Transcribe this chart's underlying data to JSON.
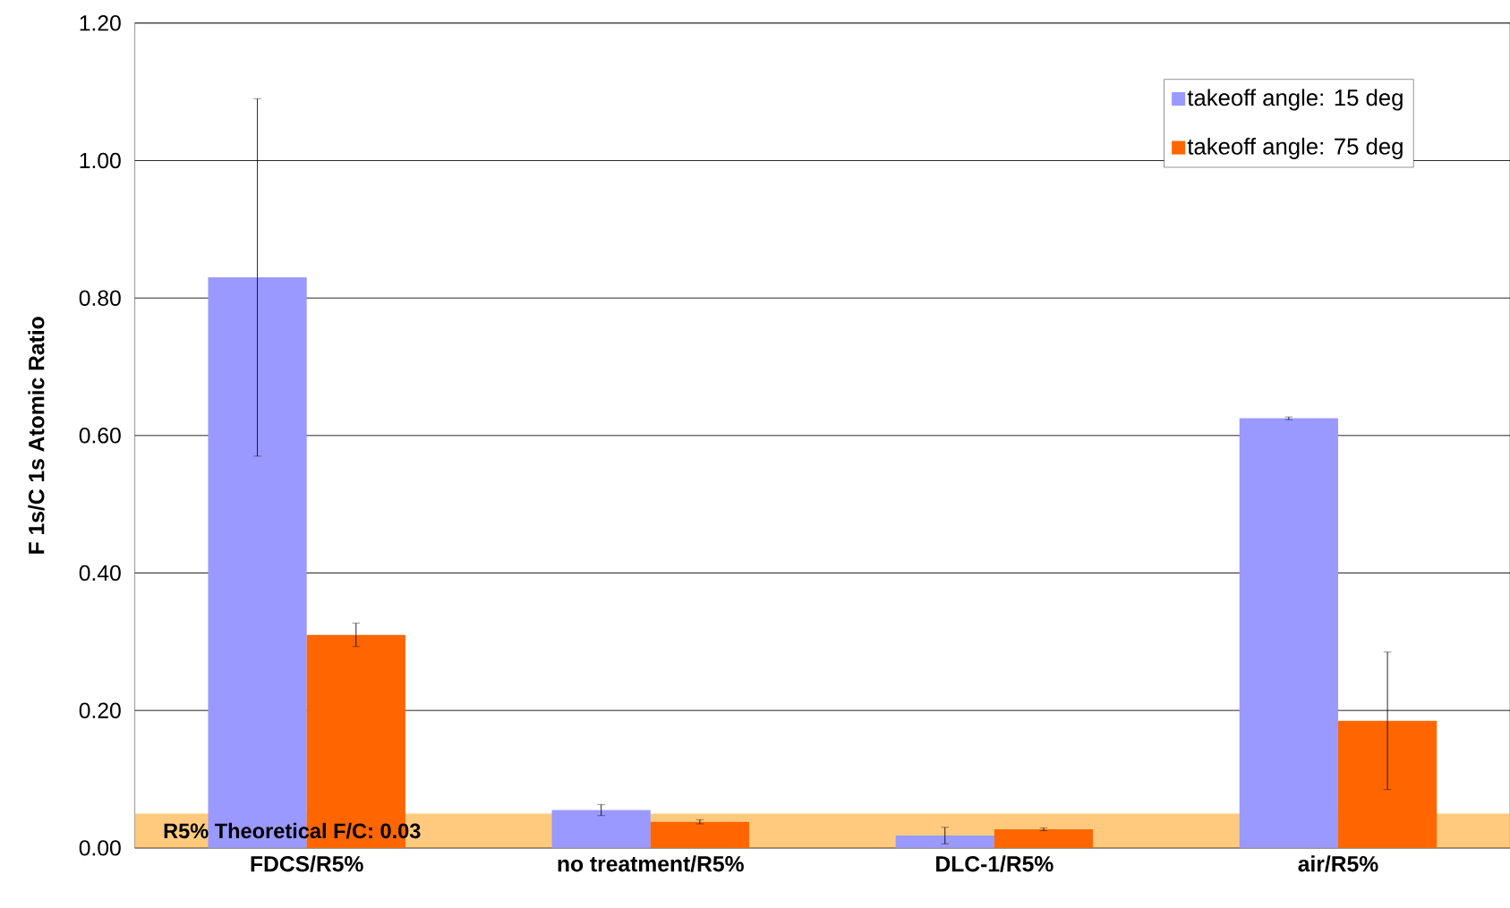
{
  "chart_data": {
    "type": "bar",
    "ylabel": "F 1s/C 1s Atomic Ratio",
    "categories": [
      "FDCS/R5%",
      "no treatment/R5%",
      "DLC-1/R5%",
      "air/R5%"
    ],
    "series": [
      {
        "name": "takeoff angle: 15 deg",
        "color": "#9999ff",
        "values": [
          0.83,
          0.055,
          0.018,
          0.625
        ],
        "errors": [
          0.26,
          0.008,
          0.012,
          0.002
        ]
      },
      {
        "name": "takeoff angle: 75 deg",
        "color": "#ff6600",
        "values": [
          0.31,
          0.038,
          0.027,
          0.185
        ],
        "errors": [
          0.017,
          0.003,
          0.002,
          0.1
        ]
      }
    ],
    "ylim": [
      0,
      1.2
    ],
    "yticks": [
      {
        "value": 0,
        "label": "0.00"
      },
      {
        "value": 0.2,
        "label": "0.20"
      },
      {
        "value": 0.4,
        "label": "0.40"
      },
      {
        "value": 0.6,
        "label": "0.60"
      },
      {
        "value": 0.8,
        "label": "0.80"
      },
      {
        "value": 1.0,
        "label": "1.00"
      },
      {
        "value": 1.2,
        "label": "1.20"
      }
    ],
    "bands": [
      {
        "axis": "y",
        "from": 0,
        "to": 0.05,
        "label": "R5% Theoretical F/C: 0.03",
        "color": "#ffb347"
      }
    ],
    "grid": "y",
    "legend": "top right"
  }
}
